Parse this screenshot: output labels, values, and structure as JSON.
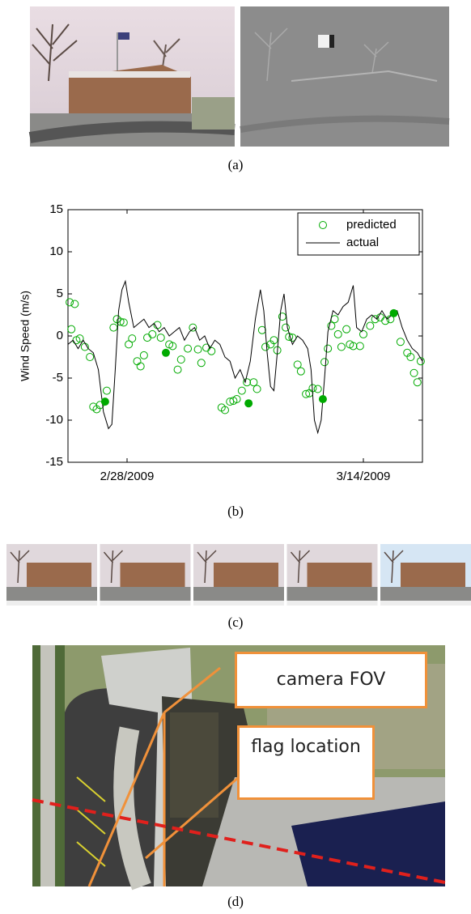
{
  "figure": {
    "labels": [
      "(a)",
      "(b)",
      "(c)",
      "(d)"
    ],
    "callouts": [
      "camera FOV",
      "flag location"
    ]
  },
  "chart_data": {
    "type": "line",
    "ylabel": "Wind Speed (m/s)",
    "xlim": [
      -3.5,
      17.5
    ],
    "xticks": [
      {
        "value": 0,
        "label": "2/28/2009"
      },
      {
        "value": 14,
        "label": "3/14/2009"
      }
    ],
    "ylim": [
      -15,
      15
    ],
    "yticks": [
      -15,
      -10,
      -5,
      0,
      5,
      10,
      15
    ],
    "legend": "northeast",
    "series": [
      {
        "name": "predicted",
        "style": "circle",
        "color": "#00aa00",
        "x": [
          -3.4,
          -3.1,
          -3.3,
          -3.0,
          -2.8,
          -2.5,
          -2.2,
          -2.0,
          -1.8,
          -1.6,
          -1.2,
          -0.8,
          -0.6,
          -0.4,
          -0.2,
          0.1,
          0.3,
          0.6,
          0.8,
          1.0,
          1.2,
          1.5,
          1.8,
          2.0,
          2.5,
          2.7,
          3.0,
          3.2,
          3.6,
          3.9,
          4.2,
          4.4,
          4.7,
          5.0,
          5.6,
          5.8,
          6.1,
          6.3,
          6.5,
          6.8,
          7.1,
          7.5,
          7.7,
          8.0,
          8.2,
          8.5,
          8.7,
          8.9,
          9.2,
          9.4,
          9.6,
          9.8,
          10.1,
          10.3,
          10.6,
          10.8,
          11.0,
          11.3,
          11.7,
          11.9,
          12.1,
          12.3,
          12.5,
          12.7,
          13.0,
          13.2,
          13.4,
          13.8,
          14.0,
          14.4,
          14.7,
          15.0,
          15.3,
          15.6,
          16.2,
          16.6,
          16.8,
          17.0,
          17.2,
          17.4
        ],
        "values": [
          4,
          3.8,
          0.8,
          -0.5,
          -0.3,
          -1.3,
          -2.5,
          -8.4,
          -8.7,
          -8.2,
          -6.5,
          1,
          2,
          1.7,
          1.6,
          -1,
          -0.3,
          -3,
          -3.6,
          -2.3,
          -0.2,
          0.2,
          1.3,
          -0.2,
          -1,
          -1.2,
          -4,
          -2.8,
          -1.5,
          1,
          -1.6,
          -3.2,
          -1.4,
          -1.8,
          -8.5,
          -8.8,
          -7.8,
          -7.7,
          -7.5,
          -6.5,
          -5.5,
          -5.5,
          -6.3,
          0.7,
          -1.3,
          -1,
          -0.5,
          -1.7,
          2.3,
          1,
          -0.1,
          -0.2,
          -3.4,
          -4.2,
          -6.9,
          -6.8,
          -6.2,
          -6.3,
          -3.1,
          -1.5,
          1.2,
          2,
          0.2,
          -1.3,
          0.8,
          -1,
          -1.2,
          -1.2,
          0.2,
          1.2,
          2,
          2.2,
          1.8,
          2,
          -0.7,
          -2,
          -2.5,
          -4.4,
          -5.5,
          -3
        ]
      },
      {
        "name": "actual",
        "style": "line",
        "color": "#000000",
        "x": [
          -3.5,
          -3.2,
          -2.9,
          -2.6,
          -2.3,
          -2.0,
          -1.7,
          -1.4,
          -1.1,
          -0.9,
          -0.7,
          -0.5,
          -0.3,
          -0.1,
          0.1,
          0.4,
          0.7,
          1.0,
          1.3,
          1.6,
          1.9,
          2.2,
          2.5,
          2.8,
          3.1,
          3.4,
          3.7,
          4.0,
          4.3,
          4.6,
          4.9,
          5.2,
          5.5,
          5.8,
          6.1,
          6.4,
          6.7,
          7.0,
          7.3,
          7.6,
          7.9,
          8.1,
          8.3,
          8.5,
          8.7,
          8.9,
          9.1,
          9.3,
          9.5,
          9.8,
          10.1,
          10.4,
          10.7,
          10.9,
          11.1,
          11.3,
          11.5,
          11.7,
          11.9,
          12.2,
          12.5,
          12.8,
          13.1,
          13.4,
          13.6,
          13.9,
          14.2,
          14.5,
          14.8,
          15.1,
          15.4,
          15.7,
          16.0,
          16.3,
          16.6,
          16.9,
          17.2,
          17.5
        ],
        "values": [
          -1,
          -0.5,
          -1.5,
          -0.5,
          -1.5,
          -2,
          -4,
          -9,
          -11,
          -10.5,
          -4,
          3,
          5.5,
          6.5,
          4,
          1,
          1.5,
          2,
          1,
          1.5,
          0.5,
          1,
          0,
          0.5,
          1,
          -0.5,
          0.5,
          1,
          -0.5,
          0,
          -1.5,
          -0.5,
          -1,
          -2.5,
          -3,
          -5,
          -4,
          -5.5,
          -3,
          2,
          5.5,
          3,
          -2,
          -6,
          -6.5,
          -2,
          3,
          5,
          1,
          -1,
          0,
          -0.5,
          -1.5,
          -4,
          -10,
          -11.5,
          -10,
          -5,
          0.5,
          3,
          2.5,
          3.5,
          4,
          6,
          1,
          0.5,
          2,
          2.5,
          2,
          3,
          2,
          2.5,
          3,
          1,
          -0.5,
          -1.5,
          -2,
          -3
        ]
      },
      {
        "style": "dot",
        "color": "#00aa00",
        "x": [
          -1.3,
          2.3,
          7.2,
          11.6,
          15.8
        ],
        "values": [
          -7.8,
          -2,
          -8,
          -7.5,
          2.7
        ]
      }
    ]
  }
}
